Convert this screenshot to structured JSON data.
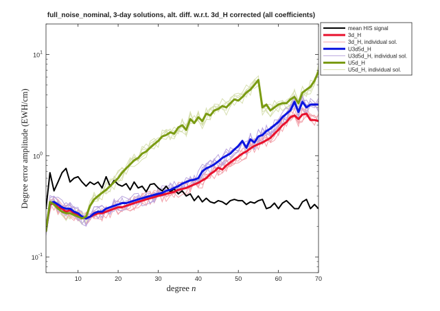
{
  "chart_data": {
    "type": "line",
    "title": "full_noise_nominal, 3-day solutions, alt. diff. w.r.t. 3d_H corrected (all coefficients)",
    "xlabel": "degree n",
    "ylabel": "Degree error amplitude (EWH/cm)",
    "xlim": [
      2,
      70
    ],
    "ylim": [
      0.07,
      20
    ],
    "yscale": "log",
    "grid": false,
    "legend_position": "outside-right-top",
    "x_ticks": [
      10,
      20,
      30,
      40,
      50,
      60,
      70
    ],
    "y_ticks": [
      {
        "value": 0.1,
        "base": "10",
        "exp": "-1"
      },
      {
        "value": 1,
        "base": "10",
        "exp": "0"
      },
      {
        "value": 10,
        "base": "10",
        "exp": "1"
      }
    ],
    "legend": [
      {
        "name": "mean HIS signal",
        "color": "#000000",
        "width": 2,
        "opacity": 1
      },
      {
        "name": "3d_H",
        "color": "#e8112d",
        "width": 3,
        "opacity": 1
      },
      {
        "name": "3d_H, individual sol.",
        "color": "#f2a3ab",
        "width": 1,
        "opacity": 1
      },
      {
        "name": "U3d5d_H",
        "color": "#0a14e0",
        "width": 3,
        "opacity": 1
      },
      {
        "name": "U3d5d_H, individual sol.",
        "color": "#b9a4dd",
        "width": 1,
        "opacity": 1
      },
      {
        "name": "U5d_H",
        "color": "#7a9b12",
        "width": 3,
        "opacity": 1
      },
      {
        "name": "U5d_H, individual sol.",
        "color": "#d6dfb0",
        "width": 1,
        "opacity": 1
      }
    ],
    "series": [
      {
        "name": "mean HIS signal",
        "color": "#000000",
        "width": 2,
        "opacity": 1,
        "x": [
          2,
          3,
          4,
          5,
          6,
          7,
          8,
          9,
          10,
          11,
          12,
          13,
          14,
          15,
          16,
          17,
          18,
          19,
          20,
          21,
          22,
          23,
          24,
          25,
          26,
          27,
          28,
          29,
          30,
          31,
          32,
          33,
          34,
          35,
          36,
          37,
          38,
          39,
          40,
          41,
          42,
          43,
          44,
          45,
          46,
          47,
          48,
          49,
          50,
          51,
          52,
          53,
          54,
          55,
          56,
          57,
          58,
          59,
          60,
          61,
          62,
          63,
          64,
          65,
          66,
          67,
          68,
          69,
          70
        ],
        "y": [
          0.3,
          0.68,
          0.45,
          0.55,
          0.68,
          0.75,
          0.55,
          0.6,
          0.62,
          0.55,
          0.5,
          0.55,
          0.52,
          0.55,
          0.48,
          0.62,
          0.5,
          0.57,
          0.52,
          0.5,
          0.53,
          0.46,
          0.55,
          0.48,
          0.5,
          0.44,
          0.52,
          0.53,
          0.48,
          0.45,
          0.5,
          0.44,
          0.47,
          0.42,
          0.45,
          0.4,
          0.42,
          0.36,
          0.4,
          0.35,
          0.38,
          0.35,
          0.34,
          0.36,
          0.35,
          0.33,
          0.36,
          0.37,
          0.36,
          0.36,
          0.33,
          0.35,
          0.34,
          0.36,
          0.37,
          0.3,
          0.31,
          0.34,
          0.3,
          0.34,
          0.36,
          0.33,
          0.3,
          0.3,
          0.35,
          0.37,
          0.3,
          0.33,
          0.3
        ]
      },
      {
        "name": "3d_H",
        "color": "#e8112d",
        "width": 3,
        "opacity": 1,
        "x": [
          2,
          3,
          4,
          5,
          6,
          7,
          8,
          9,
          10,
          11,
          12,
          13,
          14,
          15,
          16,
          17,
          18,
          19,
          20,
          21,
          22,
          23,
          24,
          25,
          26,
          27,
          28,
          29,
          30,
          31,
          32,
          33,
          34,
          35,
          36,
          37,
          38,
          39,
          40,
          41,
          42,
          43,
          44,
          45,
          46,
          47,
          48,
          49,
          50,
          51,
          52,
          53,
          54,
          55,
          56,
          57,
          58,
          59,
          60,
          61,
          62,
          63,
          64,
          65,
          66,
          67,
          68,
          69,
          70
        ],
        "y": [
          0.18,
          0.33,
          0.34,
          0.31,
          0.3,
          0.28,
          0.29,
          0.27,
          0.26,
          0.25,
          0.24,
          0.25,
          0.26,
          0.27,
          0.27,
          0.28,
          0.29,
          0.3,
          0.31,
          0.31,
          0.32,
          0.33,
          0.34,
          0.35,
          0.36,
          0.37,
          0.38,
          0.39,
          0.4,
          0.41,
          0.42,
          0.43,
          0.44,
          0.46,
          0.47,
          0.48,
          0.5,
          0.52,
          0.54,
          0.57,
          0.6,
          0.66,
          0.7,
          0.76,
          0.73,
          0.8,
          0.86,
          0.92,
          0.98,
          1.05,
          1.1,
          1.18,
          1.25,
          1.3,
          1.35,
          1.42,
          1.5,
          1.65,
          1.8,
          2.0,
          2.15,
          2.4,
          2.5,
          2.3,
          2.55,
          2.6,
          2.25,
          2.25,
          2.2
        ]
      },
      {
        "name": "U3d5d_H",
        "color": "#0a14e0",
        "width": 3,
        "opacity": 1,
        "x": [
          2,
          3,
          4,
          5,
          6,
          7,
          8,
          9,
          10,
          11,
          12,
          13,
          14,
          15,
          16,
          17,
          18,
          19,
          20,
          21,
          22,
          23,
          24,
          25,
          26,
          27,
          28,
          29,
          30,
          31,
          32,
          33,
          34,
          35,
          36,
          37,
          38,
          39,
          40,
          41,
          42,
          43,
          44,
          45,
          46,
          47,
          48,
          49,
          50,
          51,
          52,
          53,
          54,
          55,
          56,
          57,
          58,
          59,
          60,
          61,
          62,
          63,
          64,
          65,
          66,
          67,
          68,
          69,
          70
        ],
        "y": [
          0.18,
          0.34,
          0.35,
          0.33,
          0.31,
          0.3,
          0.3,
          0.28,
          0.27,
          0.25,
          0.24,
          0.25,
          0.27,
          0.28,
          0.28,
          0.3,
          0.31,
          0.32,
          0.33,
          0.34,
          0.34,
          0.35,
          0.36,
          0.37,
          0.38,
          0.39,
          0.4,
          0.41,
          0.42,
          0.43,
          0.45,
          0.46,
          0.48,
          0.5,
          0.53,
          0.55,
          0.57,
          0.58,
          0.6,
          0.7,
          0.75,
          0.78,
          0.82,
          0.88,
          0.95,
          1.0,
          1.05,
          1.15,
          1.25,
          1.4,
          1.2,
          1.45,
          1.35,
          1.55,
          1.6,
          1.75,
          1.85,
          2.0,
          2.15,
          2.4,
          2.6,
          2.8,
          3.4,
          2.7,
          3.4,
          3.0,
          3.2,
          3.2,
          3.2
        ]
      },
      {
        "name": "U5d_H",
        "color": "#7a9b12",
        "width": 3,
        "opacity": 1,
        "x": [
          2,
          3,
          4,
          5,
          6,
          7,
          8,
          9,
          10,
          11,
          12,
          13,
          14,
          15,
          16,
          17,
          18,
          19,
          20,
          21,
          22,
          23,
          24,
          25,
          26,
          27,
          28,
          29,
          30,
          31,
          32,
          33,
          34,
          35,
          36,
          37,
          38,
          39,
          40,
          41,
          42,
          43,
          44,
          45,
          46,
          47,
          48,
          49,
          50,
          51,
          52,
          53,
          54,
          55,
          56,
          57,
          58,
          59,
          60,
          61,
          62,
          63,
          64,
          65,
          66,
          67,
          68,
          69,
          70
        ],
        "y": [
          0.18,
          0.35,
          0.33,
          0.3,
          0.28,
          0.27,
          0.27,
          0.26,
          0.25,
          0.24,
          0.25,
          0.32,
          0.37,
          0.4,
          0.43,
          0.46,
          0.5,
          0.55,
          0.6,
          0.68,
          0.75,
          0.82,
          0.9,
          0.95,
          1.05,
          1.1,
          1.2,
          1.3,
          1.4,
          1.55,
          1.6,
          1.7,
          1.65,
          1.9,
          2.0,
          1.8,
          2.3,
          2.1,
          2.4,
          2.2,
          2.6,
          2.5,
          2.8,
          2.9,
          3.1,
          3.0,
          3.3,
          3.6,
          3.5,
          3.8,
          4.2,
          4.5,
          5.0,
          5.6,
          3.0,
          3.2,
          2.8,
          3.0,
          3.2,
          3.3,
          3.3,
          3.6,
          3.8,
          3.3,
          4.2,
          4.5,
          4.8,
          5.5,
          6.8
        ]
      }
    ]
  }
}
